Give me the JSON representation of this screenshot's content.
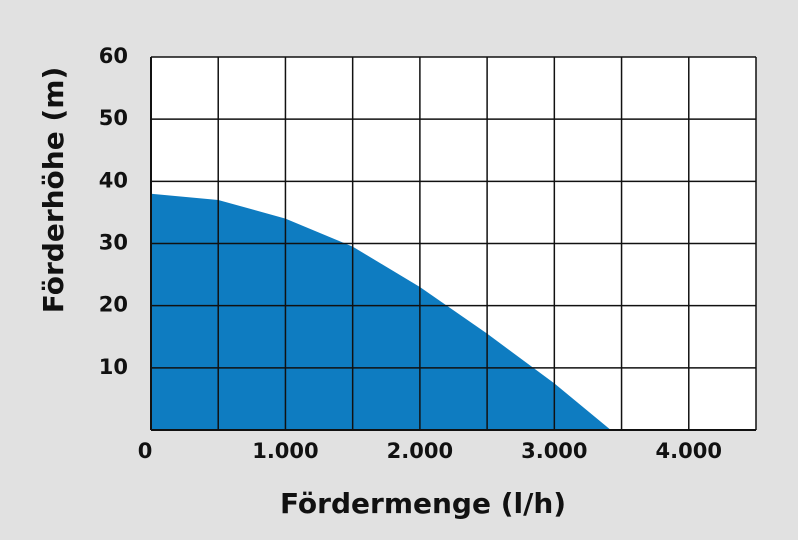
{
  "chart_data": {
    "type": "area",
    "xlabel": "Fördermenge (l/h)",
    "ylabel": "Förderhöhe (m)",
    "x": [
      0,
      500,
      1000,
      1500,
      2000,
      2500,
      3000,
      3420
    ],
    "values": [
      38,
      37,
      34,
      29.5,
      23,
      15.5,
      7.5,
      0
    ],
    "color": "#0e7cc1",
    "xlim": [
      0,
      4500
    ],
    "ylim": [
      0,
      60
    ],
    "xticks": [
      0,
      {
        "value": 1000,
        "label": "1.000"
      },
      {
        "value": 2000,
        "label": "2.000"
      },
      {
        "value": 3000,
        "label": "3.000"
      },
      {
        "value": 4000,
        "label": "4.000"
      }
    ],
    "xgrid": [
      500,
      1000,
      1500,
      2000,
      2500,
      3000,
      3500,
      4000,
      4500
    ],
    "yticks": [
      10,
      20,
      30,
      40,
      50,
      60
    ],
    "grid": true
  }
}
